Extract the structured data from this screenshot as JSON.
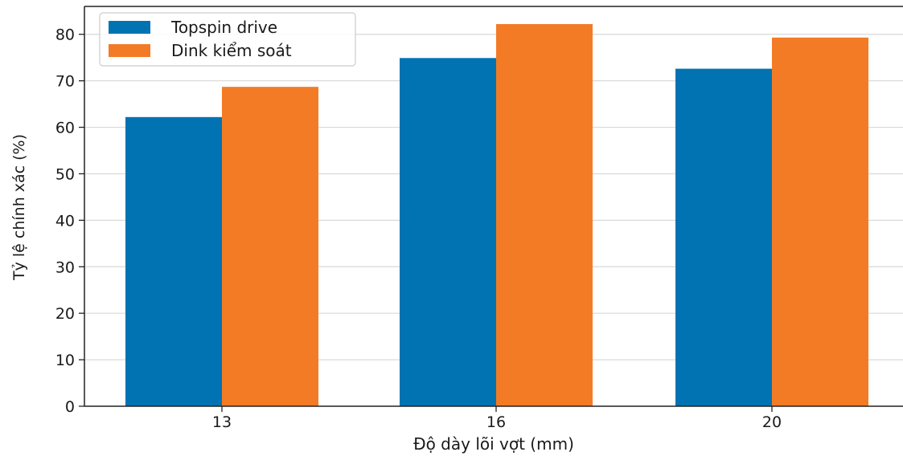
{
  "chart_data": {
    "type": "bar",
    "title": "",
    "xlabel": "Độ dày lõi vợt (mm)",
    "ylabel": "Tỷ lệ chính xác (%)",
    "categories": [
      "13",
      "16",
      "20"
    ],
    "series": [
      {
        "name": "Topspin drive",
        "color": "#0173b2",
        "values": [
          62.2,
          74.9,
          72.6
        ]
      },
      {
        "name": "Dink kiểm soát",
        "color": "#f37b26",
        "values": [
          68.7,
          82.2,
          79.3
        ]
      }
    ],
    "ylim": [
      0,
      86
    ],
    "yticks": [
      0,
      10,
      20,
      30,
      40,
      50,
      60,
      70,
      80
    ],
    "grid": "horizontal",
    "legend_position": "top-left"
  }
}
